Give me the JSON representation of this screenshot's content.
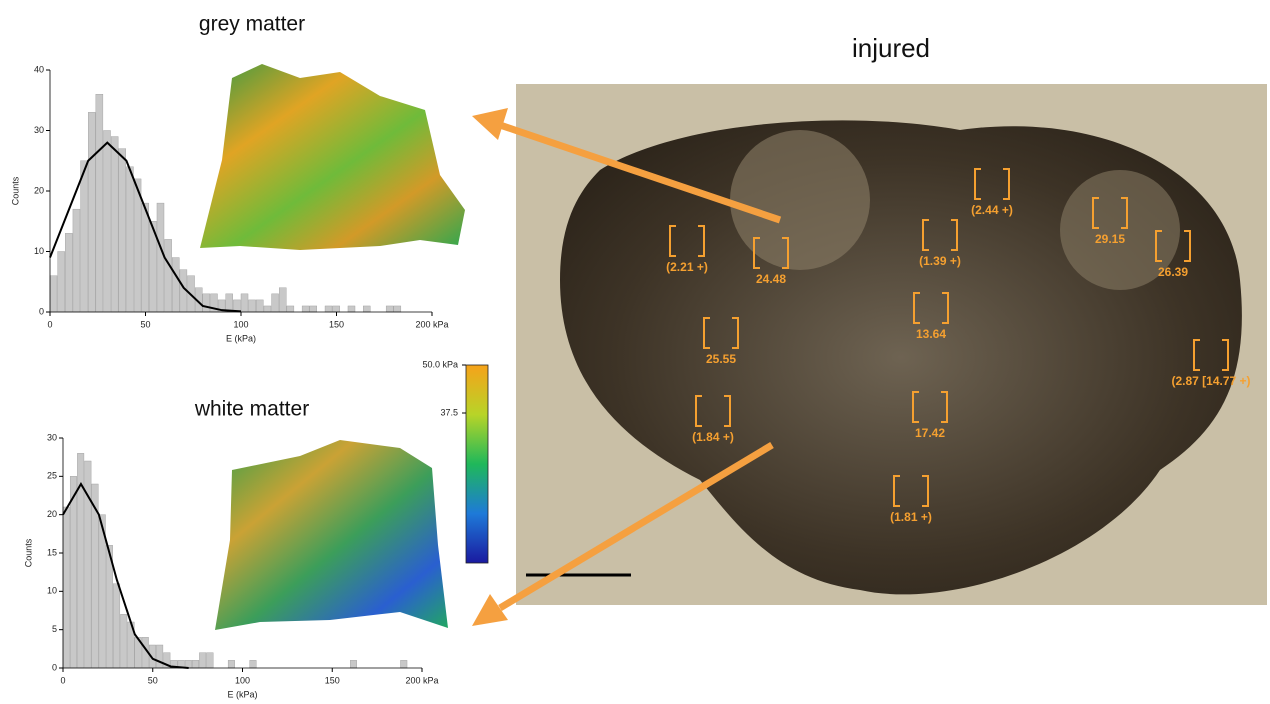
{
  "chart_data": [
    {
      "type": "histogram",
      "title": "grey matter",
      "xlabel": "E (kPa)",
      "ylabel": "Counts",
      "color": "#c8c8c8",
      "bins": [
        0,
        4,
        8,
        12,
        16,
        20,
        24,
        28,
        32,
        36,
        40,
        44,
        48,
        52,
        56,
        60,
        64,
        68,
        72,
        76,
        80,
        84,
        88,
        92,
        96,
        100,
        104,
        108,
        112,
        116,
        120,
        124,
        128,
        132,
        136,
        140,
        144,
        148,
        152,
        156,
        160,
        164,
        168,
        172,
        176,
        180,
        184,
        188,
        192,
        196,
        200
      ],
      "counts": [
        6,
        10,
        13,
        17,
        25,
        33,
        36,
        30,
        29,
        27,
        24,
        22,
        18,
        15,
        18,
        12,
        9,
        7,
        6,
        4,
        3,
        3,
        2,
        3,
        2,
        3,
        2,
        2,
        1,
        3,
        4,
        1,
        0,
        1,
        1,
        0,
        1,
        1,
        0,
        1,
        0,
        1,
        0,
        0,
        1,
        1,
        0,
        0,
        0,
        0
      ],
      "fit": {
        "color": "#000000",
        "x": [
          0,
          10,
          20,
          30,
          40,
          50,
          60,
          70,
          80,
          90,
          100
        ],
        "y": [
          9,
          17,
          25,
          28,
          25,
          17,
          9,
          4,
          1,
          0.3,
          0.1
        ]
      },
      "xlim": [
        0,
        200
      ],
      "ylim": [
        0,
        40
      ],
      "xticks": [
        0,
        50,
        100,
        150,
        {
          "value": 200,
          "label": "200 kPa"
        }
      ],
      "yticks": [
        0,
        10,
        20,
        30,
        40
      ]
    },
    {
      "type": "histogram",
      "title": "white matter",
      "xlabel": "E (kPa)",
      "ylabel": "Counts",
      "color": "#c8c8c8",
      "bins": [
        0,
        4,
        8,
        12,
        16,
        20,
        24,
        28,
        32,
        36,
        40,
        44,
        48,
        52,
        56,
        60,
        64,
        68,
        72,
        76,
        80,
        84,
        88,
        92,
        96,
        100,
        104,
        108,
        112,
        116,
        120,
        124,
        128,
        132,
        136,
        140,
        144,
        148,
        152,
        156,
        160,
        164,
        168,
        172,
        176,
        180,
        184,
        188,
        192,
        196,
        200
      ],
      "counts": [
        21,
        25,
        28,
        27,
        24,
        20,
        16,
        11,
        7,
        6,
        4,
        4,
        3,
        3,
        2,
        1,
        1,
        1,
        1,
        2,
        2,
        0,
        0,
        1,
        0,
        0,
        1,
        0,
        0,
        0,
        0,
        0,
        0,
        0,
        0,
        0,
        0,
        0,
        0,
        0,
        1,
        0,
        0,
        0,
        0,
        0,
        0,
        1,
        0,
        0
      ],
      "fit": {
        "color": "#000000",
        "x": [
          0,
          10,
          20,
          30,
          40,
          50,
          60,
          70
        ],
        "y": [
          20,
          24,
          20,
          11.5,
          4.4,
          1.2,
          0.2,
          0
        ]
      },
      "xlim": [
        0,
        200
      ],
      "ylim": [
        0,
        30
      ],
      "xticks": [
        0,
        50,
        100,
        150,
        {
          "value": 200,
          "label": "200 kPa"
        }
      ],
      "yticks": [
        0,
        5,
        10,
        15,
        20,
        25,
        30
      ]
    }
  ],
  "colorbar": {
    "lim": [
      0,
      50
    ],
    "ticks": [
      {
        "value": 50,
        "label": "50.0 kPa"
      },
      37.5
    ]
  },
  "micrograph": {
    "title": "injured",
    "labels": [
      "(2.21 +)",
      "24.48",
      "(2.44 +)",
      "(1.39 +)",
      "29.15",
      "26.39",
      "13.64",
      "25.55",
      "(2.87 [14.77 +)",
      "(1.84 +)",
      "17.42",
      "(1.81 +)"
    ]
  }
}
